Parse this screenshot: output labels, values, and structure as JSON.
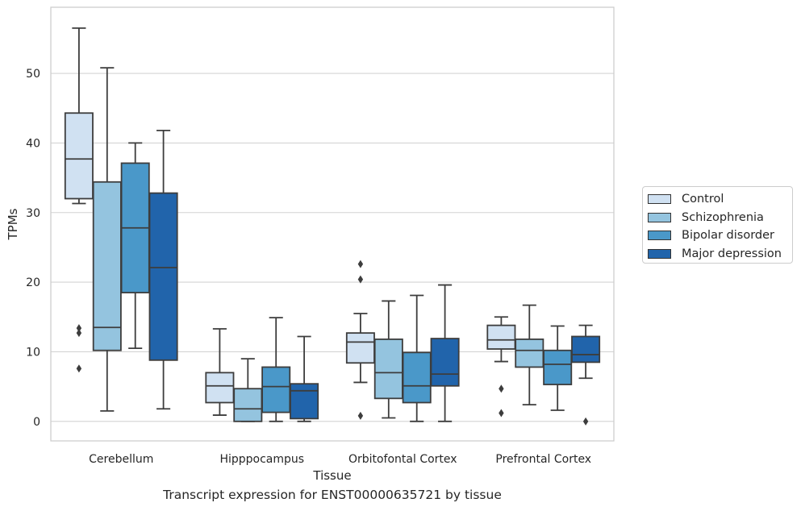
{
  "chart_data": {
    "type": "boxplot",
    "title": "Transcript expression for ENST00000635721 by tissue",
    "xlabel": "Tissue",
    "ylabel": "TPMs",
    "ylim": [
      -2.8,
      59.5
    ],
    "yticks": [
      0,
      10,
      20,
      30,
      40,
      50
    ],
    "grid": "horizontal",
    "legend_position": "right",
    "categories": [
      "Cerebellum",
      "Hipppocampus",
      "Orbitofontal Cortex",
      "Prefrontal Cortex"
    ],
    "series": [
      {
        "name": "Control",
        "color": "#d0e1f2",
        "boxes": [
          {
            "whisker_low": 31.3,
            "q1": 32.0,
            "median": 37.7,
            "q3": 44.3,
            "whisker_high": 56.5,
            "outliers": [
              13.4,
              12.7,
              7.6
            ]
          },
          {
            "whisker_low": 0.9,
            "q1": 2.7,
            "median": 5.1,
            "q3": 7.0,
            "whisker_high": 13.3,
            "outliers": []
          },
          {
            "whisker_low": 5.6,
            "q1": 8.4,
            "median": 11.4,
            "q3": 12.7,
            "whisker_high": 15.5,
            "outliers": [
              22.6,
              20.4,
              0.8
            ]
          },
          {
            "whisker_low": 8.6,
            "q1": 10.4,
            "median": 11.7,
            "q3": 13.8,
            "whisker_high": 15.0,
            "outliers": [
              4.7,
              1.2
            ]
          }
        ]
      },
      {
        "name": "Schizophrenia",
        "color": "#94c4df",
        "boxes": [
          {
            "whisker_low": 1.5,
            "q1": 10.2,
            "median": 13.5,
            "q3": 34.4,
            "whisker_high": 50.8,
            "outliers": []
          },
          {
            "whisker_low": 0.0,
            "q1": 0.0,
            "median": 1.8,
            "q3": 4.7,
            "whisker_high": 9.0,
            "outliers": []
          },
          {
            "whisker_low": 0.5,
            "q1": 3.3,
            "median": 7.0,
            "q3": 11.8,
            "whisker_high": 17.3,
            "outliers": []
          },
          {
            "whisker_low": 2.4,
            "q1": 7.8,
            "median": 10.2,
            "q3": 11.8,
            "whisker_high": 16.7,
            "outliers": []
          }
        ]
      },
      {
        "name": "Bipolar disorder",
        "color": "#4a98c9",
        "boxes": [
          {
            "whisker_low": 10.5,
            "q1": 18.5,
            "median": 27.8,
            "q3": 37.1,
            "whisker_high": 40.0,
            "outliers": []
          },
          {
            "whisker_low": 0.0,
            "q1": 1.3,
            "median": 5.0,
            "q3": 7.8,
            "whisker_high": 14.9,
            "outliers": []
          },
          {
            "whisker_low": 0.0,
            "q1": 2.7,
            "median": 5.1,
            "q3": 9.9,
            "whisker_high": 18.1,
            "outliers": []
          },
          {
            "whisker_low": 1.6,
            "q1": 5.3,
            "median": 8.2,
            "q3": 10.2,
            "whisker_high": 13.7,
            "outliers": []
          }
        ]
      },
      {
        "name": "Major depression",
        "color": "#2164ab",
        "boxes": [
          {
            "whisker_low": 1.8,
            "q1": 8.8,
            "median": 22.1,
            "q3": 32.8,
            "whisker_high": 41.8,
            "outliers": []
          },
          {
            "whisker_low": 0.0,
            "q1": 0.4,
            "median": 4.4,
            "q3": 5.4,
            "whisker_high": 12.2,
            "outliers": []
          },
          {
            "whisker_low": 0.0,
            "q1": 5.1,
            "median": 6.8,
            "q3": 11.9,
            "whisker_high": 19.6,
            "outliers": []
          },
          {
            "whisker_low": 6.2,
            "q1": 8.5,
            "median": 9.6,
            "q3": 12.2,
            "whisker_high": 13.8,
            "outliers": [
              0.0
            ]
          }
        ]
      }
    ]
  }
}
